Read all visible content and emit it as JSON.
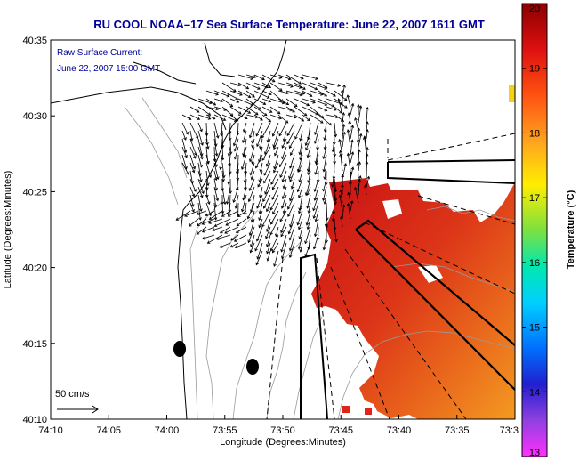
{
  "chart_data": {
    "type": "heatmap",
    "title": "RU COOL   NOAA–17  Sea Surface Temperature:  June 22, 2007 1611 GMT",
    "xlabel": "Longitude (Degrees:Minutes)",
    "ylabel": "Latitude (Degrees:Minutes)",
    "x_ticks": [
      "74:10",
      "74:05",
      "74:00",
      "73:55",
      "73:50",
      "73:45",
      "73:40",
      "73:35",
      "73:3"
    ],
    "y_ticks": [
      "40:35",
      "40:30",
      "40:25",
      "40:20",
      "40:15",
      "40:10"
    ],
    "colorbar": {
      "label": "Temperature (°C)",
      "ticks": [
        "20",
        "19",
        "18",
        "17",
        "16",
        "15",
        "14",
        "13"
      ],
      "range": [
        13,
        20
      ]
    },
    "annotations": {
      "current_title": "Raw Surface Current:",
      "current_time": "June 22, 2007 15:00 GMT",
      "scale_label": "50 cm/s"
    },
    "grid": false,
    "legend": "none",
    "colors": {
      "title": "#000099",
      "sst_warm": "#cc1a1a",
      "sst_mid": "#e8541a",
      "sst_cool": "#f29a20"
    }
  }
}
